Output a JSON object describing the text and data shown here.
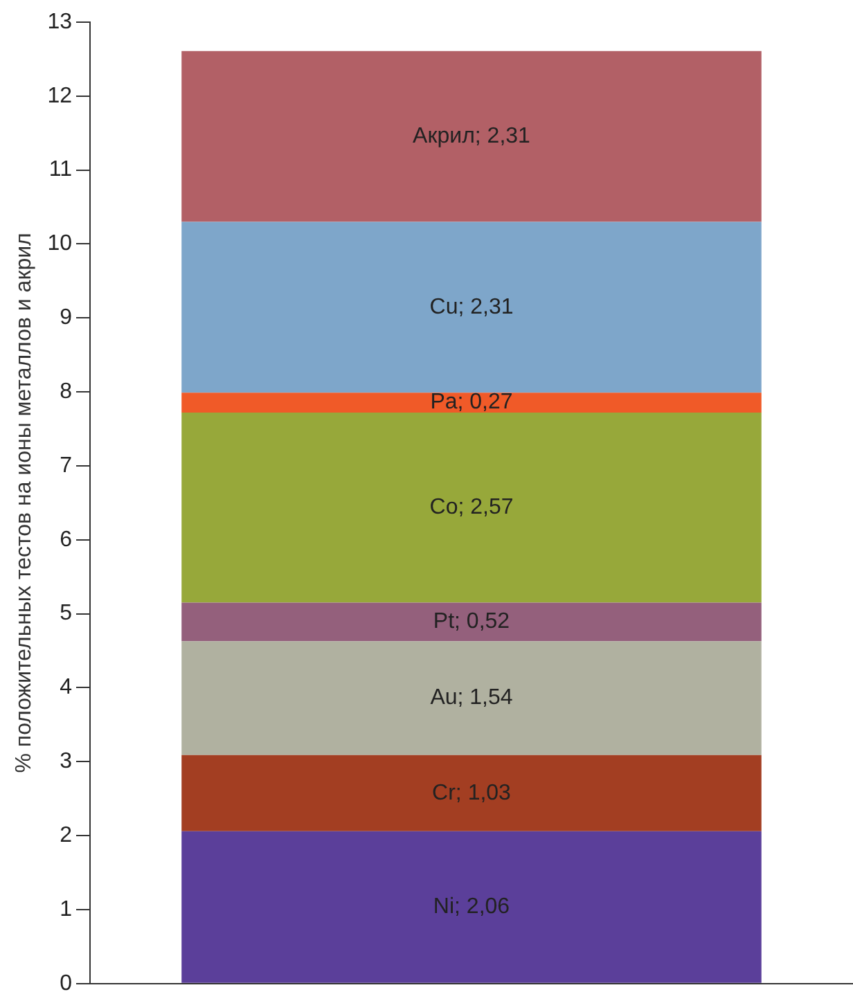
{
  "chart_data": {
    "type": "bar",
    "stacked": true,
    "ylabel": "% положительных тестов на ионы металлов и акрил",
    "categories": [
      null
    ],
    "series": [
      {
        "color": "#5b3f9a",
        "values": [
          2.06
        ],
        "value_labels": [
          "Ni; 2,06"
        ]
      },
      {
        "color": "#a33e22",
        "values": [
          1.03
        ],
        "value_labels": [
          "Cr; 1,03"
        ]
      },
      {
        "color": "#b0b1a0",
        "values": [
          1.54
        ],
        "value_labels": [
          "Au; 1,54"
        ]
      },
      {
        "color": "#94607c",
        "values": [
          0.52
        ],
        "value_labels": [
          "Pt; 0,52"
        ]
      },
      {
        "color": "#97a83a",
        "values": [
          2.57
        ],
        "value_labels": [
          "Co; 2,57"
        ]
      },
      {
        "color": "#f05a28",
        "values": [
          0.27
        ],
        "value_labels": [
          "Pa; 0,27"
        ]
      },
      {
        "color": "#7ea6ca",
        "values": [
          2.31
        ],
        "value_labels": [
          "Cu; 2,31"
        ]
      },
      {
        "color": "#b26066",
        "values": [
          2.31
        ],
        "value_labels": [
          "Акрил; 2,31"
        ]
      }
    ],
    "ylim": [
      0,
      13
    ],
    "yticks": [
      0,
      1,
      2,
      3,
      4,
      5,
      6,
      7,
      8,
      9,
      10,
      11,
      12,
      13
    ],
    "grid": false,
    "legend": false,
    "tick_labels": "y"
  }
}
